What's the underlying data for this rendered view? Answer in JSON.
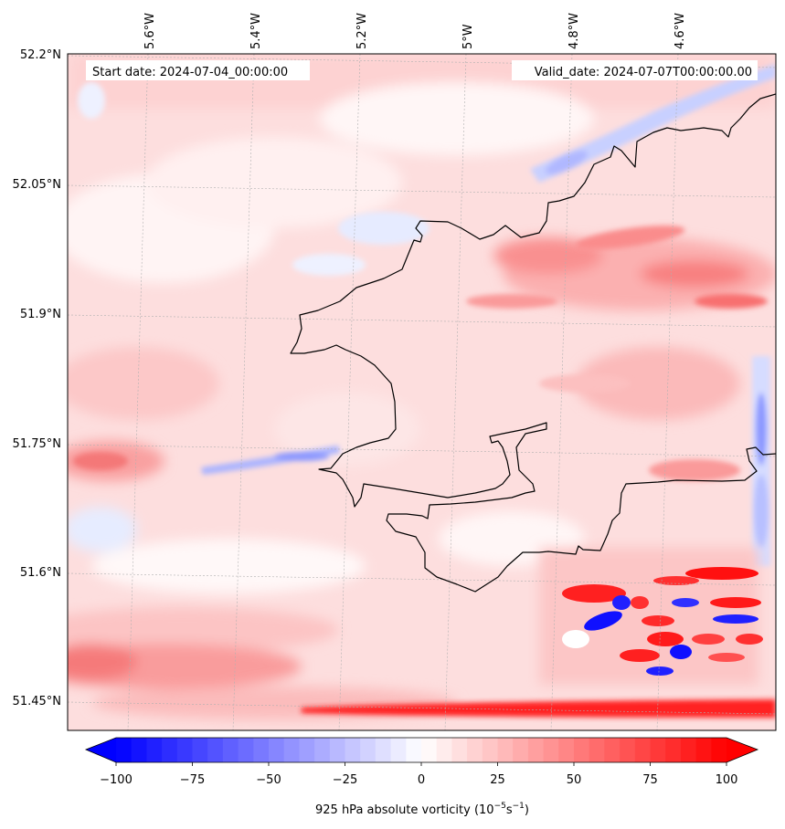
{
  "map": {
    "start_date": "Start date: 2024-07-04_00:00:00",
    "valid_date": "Valid_date: 2024-07-07T00:00:00.00",
    "lon_labels": [
      "5.6°W",
      "5.4°W",
      "5.2°W",
      "5°W",
      "4.8°W",
      "4.6°W"
    ],
    "lat_labels": [
      "52.2°N",
      "52.05°N",
      "51.9°N",
      "51.75°N",
      "51.6°N",
      "51.45°N"
    ],
    "field": "925 hPa absolute vorticity"
  },
  "colorbar": {
    "label_main": "925 hPa absolute vorticity (10",
    "label_exp1": "−5",
    "label_mid": "s",
    "label_exp2": "−1",
    "label_end": ")",
    "ticks": [
      "−100",
      "−75",
      "−50",
      "−25",
      "0",
      "25",
      "50",
      "75",
      "100"
    ],
    "min": -100,
    "max": 100,
    "extend": "both",
    "cmap": "bwr"
  },
  "colors": {
    "negative": "#0000ff",
    "zero": "#ffffff",
    "positive": "#ff0000",
    "coastline": "#000000",
    "gridline": "#b0b0b0"
  }
}
